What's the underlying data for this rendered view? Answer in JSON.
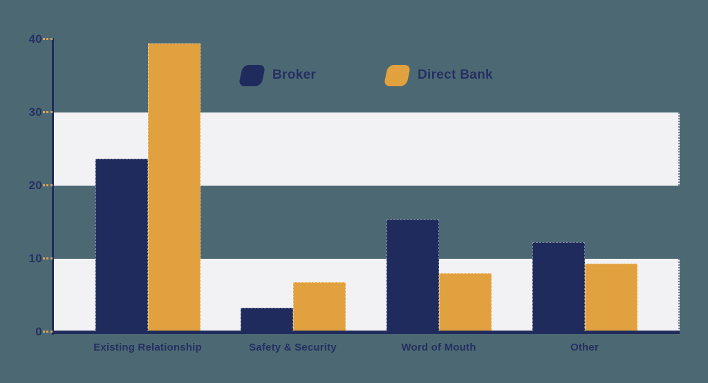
{
  "page": {
    "background_color": "#4C6973",
    "band_color": "#F2F2F4",
    "axis_color": "#202C5C",
    "text_color": "#262F62",
    "tick_dash_color": "#D9A35B"
  },
  "chart_data": {
    "type": "bar",
    "title": "",
    "xlabel": "",
    "ylabel": "",
    "categories": [
      "Existing Relationship",
      "Safety & Security",
      "Word of Mouth",
      "Other"
    ],
    "series": [
      {
        "name": "Broker",
        "color": "#1F2B5C",
        "values": [
          23.7,
          3.3,
          15.4,
          12.3
        ]
      },
      {
        "name": "Direct Bank",
        "color": "#E2A13F",
        "values": [
          39.4,
          6.8,
          8.0,
          9.3
        ]
      }
    ],
    "yticks": [
      40,
      30,
      20,
      10,
      0
    ],
    "ylim": [
      0,
      40
    ],
    "grid": "alternating-horizontal-bands",
    "grid_bands": [
      [
        20,
        30
      ],
      [
        0,
        10
      ]
    ],
    "legend_position": "top-center"
  }
}
